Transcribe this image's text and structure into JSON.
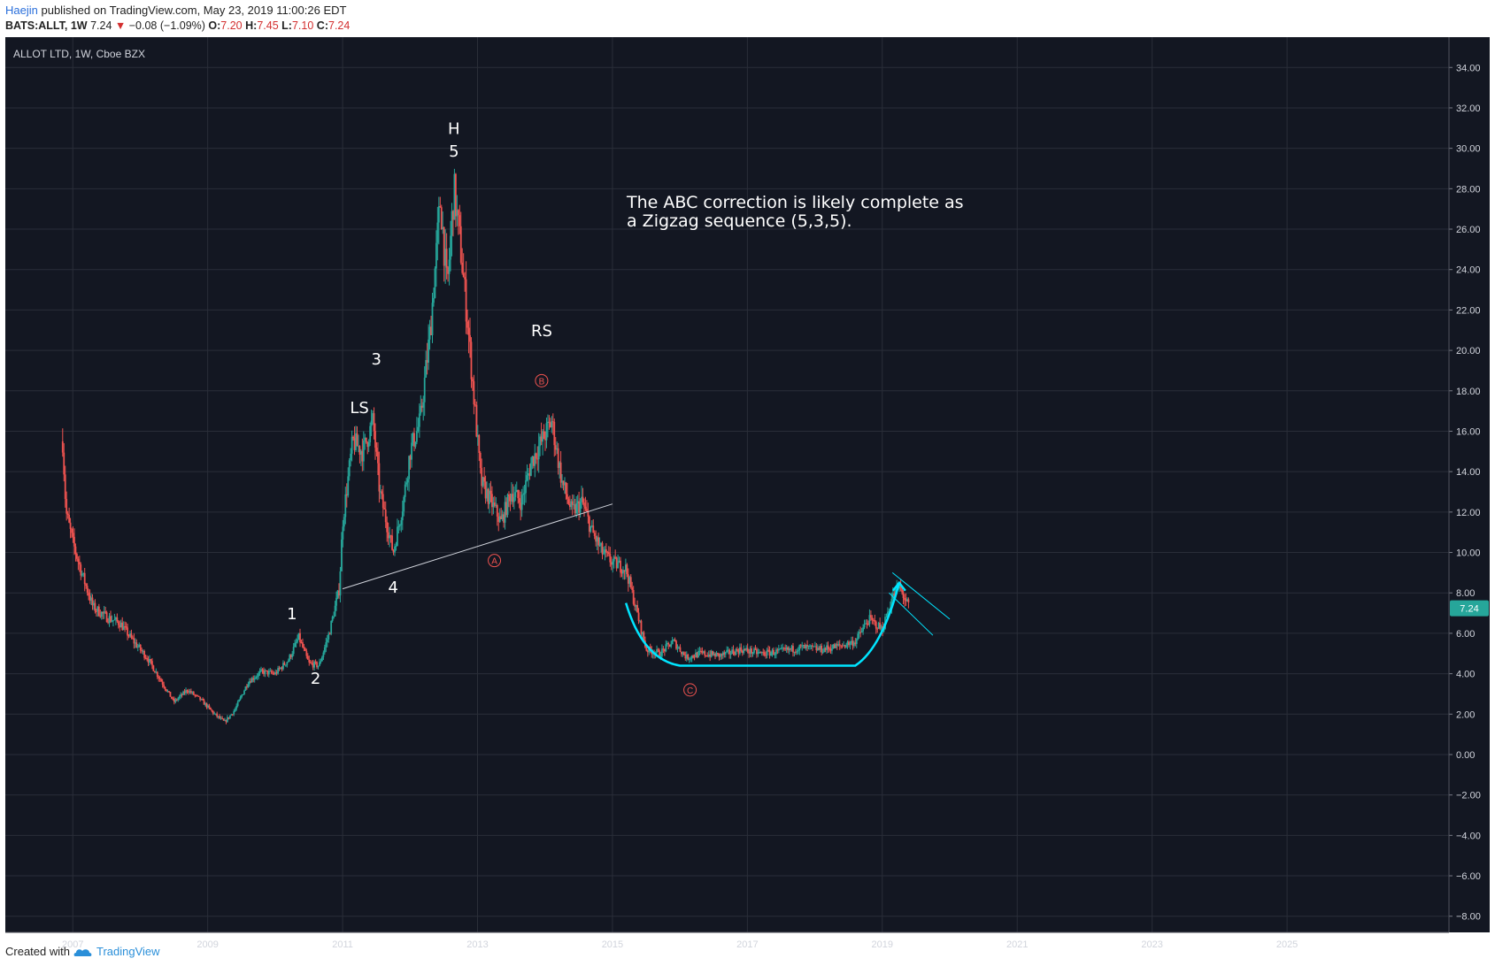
{
  "header": {
    "author": "Haejin",
    "published_text": "published on TradingView.com, May 23, 2019 11:00:26 EDT",
    "symbol": "BATS:ALLT, 1W",
    "last": "7.24",
    "change": "−0.08 (−1.09%)",
    "o_label": "O:",
    "o_value": "7.20",
    "h_label": "H:",
    "h_value": "7.45",
    "l_label": "L:",
    "l_value": "7.10",
    "c_label": "C:",
    "c_value": "7.24"
  },
  "footer": {
    "created_with": "Created with",
    "brand": "TradingView"
  },
  "colors": {
    "background": "#131722",
    "grid": "#2a2e39",
    "up": "#26a69a",
    "down": "#ef5350",
    "annotation": "#ffffff",
    "abc_marker": "#ef5350",
    "cup_line": "#00e5ff",
    "price_tag": "#26a69a"
  },
  "chart_data": {
    "type": "candlestick",
    "title": "ALLOT LTD, 1W, Cboe BZX",
    "x_tick_labels": [
      "2007",
      "2009",
      "2011",
      "2013",
      "2015",
      "2017",
      "2019",
      "2021",
      "2023",
      "2025"
    ],
    "y_tick_labels": [
      "34.00",
      "32.00",
      "30.00",
      "28.00",
      "26.00",
      "24.00",
      "22.00",
      "20.00",
      "18.00",
      "16.00",
      "14.00",
      "12.00",
      "10.00",
      "8.00",
      "6.00",
      "4.00",
      "2.00",
      "0.00",
      "−2.00",
      "−4.00",
      "−6.00",
      "−8.00"
    ],
    "ylim": [
      -8.8,
      35.5
    ],
    "xlim": [
      2006.0,
      2027.4
    ],
    "last_price_label": "7.24",
    "price_path": [
      [
        2006.85,
        15.5
      ],
      [
        2006.9,
        12.0
      ],
      [
        2007.0,
        10.5
      ],
      [
        2007.15,
        8.8
      ],
      [
        2007.3,
        7.3
      ],
      [
        2007.5,
        6.8
      ],
      [
        2007.7,
        6.5
      ],
      [
        2007.9,
        5.6
      ],
      [
        2008.1,
        4.8
      ],
      [
        2008.3,
        3.7
      ],
      [
        2008.5,
        2.6
      ],
      [
        2008.7,
        3.2
      ],
      [
        2008.9,
        2.7
      ],
      [
        2009.1,
        2.0
      ],
      [
        2009.25,
        1.6
      ],
      [
        2009.4,
        2.2
      ],
      [
        2009.6,
        3.6
      ],
      [
        2009.8,
        4.1
      ],
      [
        2010.0,
        4.0
      ],
      [
        2010.2,
        4.7
      ],
      [
        2010.35,
        5.8
      ],
      [
        2010.5,
        4.5
      ],
      [
        2010.65,
        4.4
      ],
      [
        2010.8,
        6.0
      ],
      [
        2010.95,
        8.2
      ],
      [
        2011.0,
        11.5
      ],
      [
        2011.15,
        15.5
      ],
      [
        2011.3,
        15.0
      ],
      [
        2011.45,
        16.5
      ],
      [
        2011.55,
        13.0
      ],
      [
        2011.65,
        11.5
      ],
      [
        2011.75,
        10.0
      ],
      [
        2011.9,
        12.5
      ],
      [
        2012.0,
        15.0
      ],
      [
        2012.15,
        16.5
      ],
      [
        2012.3,
        21.0
      ],
      [
        2012.45,
        27.5
      ],
      [
        2012.55,
        23.0
      ],
      [
        2012.65,
        28.0
      ],
      [
        2012.75,
        25.0
      ],
      [
        2012.85,
        21.5
      ],
      [
        2012.95,
        17.5
      ],
      [
        2013.05,
        13.5
      ],
      [
        2013.2,
        12.5
      ],
      [
        2013.35,
        11.5
      ],
      [
        2013.5,
        13.0
      ],
      [
        2013.65,
        12.5
      ],
      [
        2013.8,
        14.5
      ],
      [
        2013.95,
        15.5
      ],
      [
        2014.1,
        16.5
      ],
      [
        2014.25,
        13.5
      ],
      [
        2014.4,
        12.0
      ],
      [
        2014.55,
        12.5
      ],
      [
        2014.7,
        11.0
      ],
      [
        2014.85,
        10.0
      ],
      [
        2015.0,
        9.5
      ],
      [
        2015.2,
        9.2
      ],
      [
        2015.35,
        7.2
      ],
      [
        2015.5,
        5.2
      ],
      [
        2015.7,
        5.0
      ],
      [
        2015.9,
        5.6
      ],
      [
        2016.1,
        4.8
      ],
      [
        2016.3,
        5.0
      ],
      [
        2016.6,
        4.9
      ],
      [
        2016.9,
        5.2
      ],
      [
        2017.2,
        5.0
      ],
      [
        2017.5,
        5.1
      ],
      [
        2017.8,
        5.3
      ],
      [
        2018.1,
        5.2
      ],
      [
        2018.4,
        5.4
      ],
      [
        2018.6,
        5.6
      ],
      [
        2018.8,
        6.7
      ],
      [
        2019.0,
        6.2
      ],
      [
        2019.15,
        7.8
      ],
      [
        2019.25,
        8.3
      ],
      [
        2019.4,
        7.24
      ]
    ],
    "wave_labels": [
      {
        "text": "1",
        "x": 2010.25,
        "y": 6.7
      },
      {
        "text": "2",
        "x": 2010.6,
        "y": 3.5
      },
      {
        "text": "3",
        "x": 2011.5,
        "y": 19.3
      },
      {
        "text": "4",
        "x": 2011.75,
        "y": 8.0
      },
      {
        "text": "5",
        "x": 2012.65,
        "y": 29.6
      },
      {
        "text": "H",
        "x": 2012.65,
        "y": 30.7
      },
      {
        "text": "LS",
        "x": 2011.25,
        "y": 16.9
      },
      {
        "text": "RS",
        "x": 2013.95,
        "y": 20.7
      }
    ],
    "abc_markers": [
      {
        "text": "A",
        "x": 2013.25,
        "y": 9.6
      },
      {
        "text": "B",
        "x": 2013.95,
        "y": 18.5
      },
      {
        "text": "C",
        "x": 2016.15,
        "y": 3.2
      }
    ],
    "note": "The ABC correction is likely complete as a Zigzag sequence (5,3,5).",
    "note_lines": [
      "The ABC correction is likely complete as",
      "a Zigzag sequence (5,3,5)."
    ],
    "trendline": {
      "x1": 2011.0,
      "y1": 8.2,
      "x2": 2015.0,
      "y2": 12.4
    },
    "cup_curve": [
      [
        2015.2,
        7.5
      ],
      [
        2015.45,
        4.7
      ],
      [
        2016.0,
        4.4
      ],
      [
        2018.6,
        4.4
      ],
      [
        2019.0,
        5.3
      ],
      [
        2019.25,
        8.5
      ]
    ],
    "channel_lines": [
      {
        "x1": 2019.15,
        "y1": 9.0,
        "x2": 2020.0,
        "y2": 6.7
      },
      {
        "x1": 2019.1,
        "y1": 8.0,
        "x2": 2019.75,
        "y2": 5.9
      }
    ]
  }
}
